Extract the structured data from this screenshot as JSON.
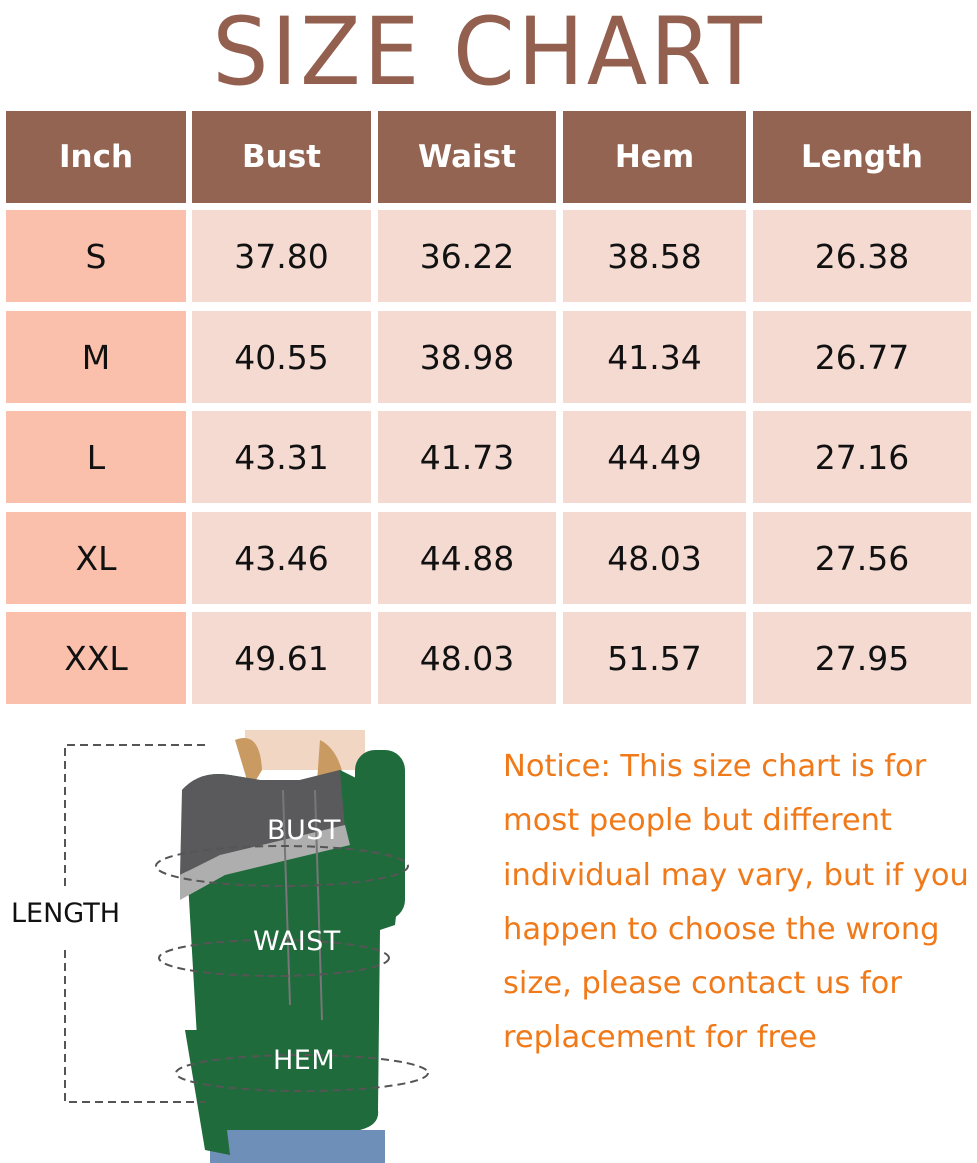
{
  "title": "SIZE CHART",
  "table": {
    "headers": [
      "Inch",
      "Bust",
      "Waist",
      "Hem",
      "Length"
    ],
    "rows": [
      [
        "S",
        "37.80",
        "36.22",
        "38.58",
        "26.38"
      ],
      [
        "M",
        "40.55",
        "38.98",
        "41.34",
        "26.77"
      ],
      [
        "L",
        "43.31",
        "41.73",
        "44.49",
        "27.16"
      ],
      [
        "XL",
        "43.46",
        "44.88",
        "48.03",
        "27.56"
      ],
      [
        "XXL",
        "49.61",
        "48.03",
        "51.57",
        "27.95"
      ]
    ]
  },
  "diagram": {
    "bust": "BUST",
    "waist": "WAIST",
    "hem": "HEM",
    "length": "LENGTH"
  },
  "notice": "Notice: This size chart is for most people but different individual may vary, but if you happen to choose the wrong size, please contact us for replacement for free",
  "colors": {
    "title": "#93604f",
    "header": "#946453",
    "size_cell": "#fbc0ac",
    "value_cell": "#f5dad2",
    "notice": "#f07a1a"
  }
}
